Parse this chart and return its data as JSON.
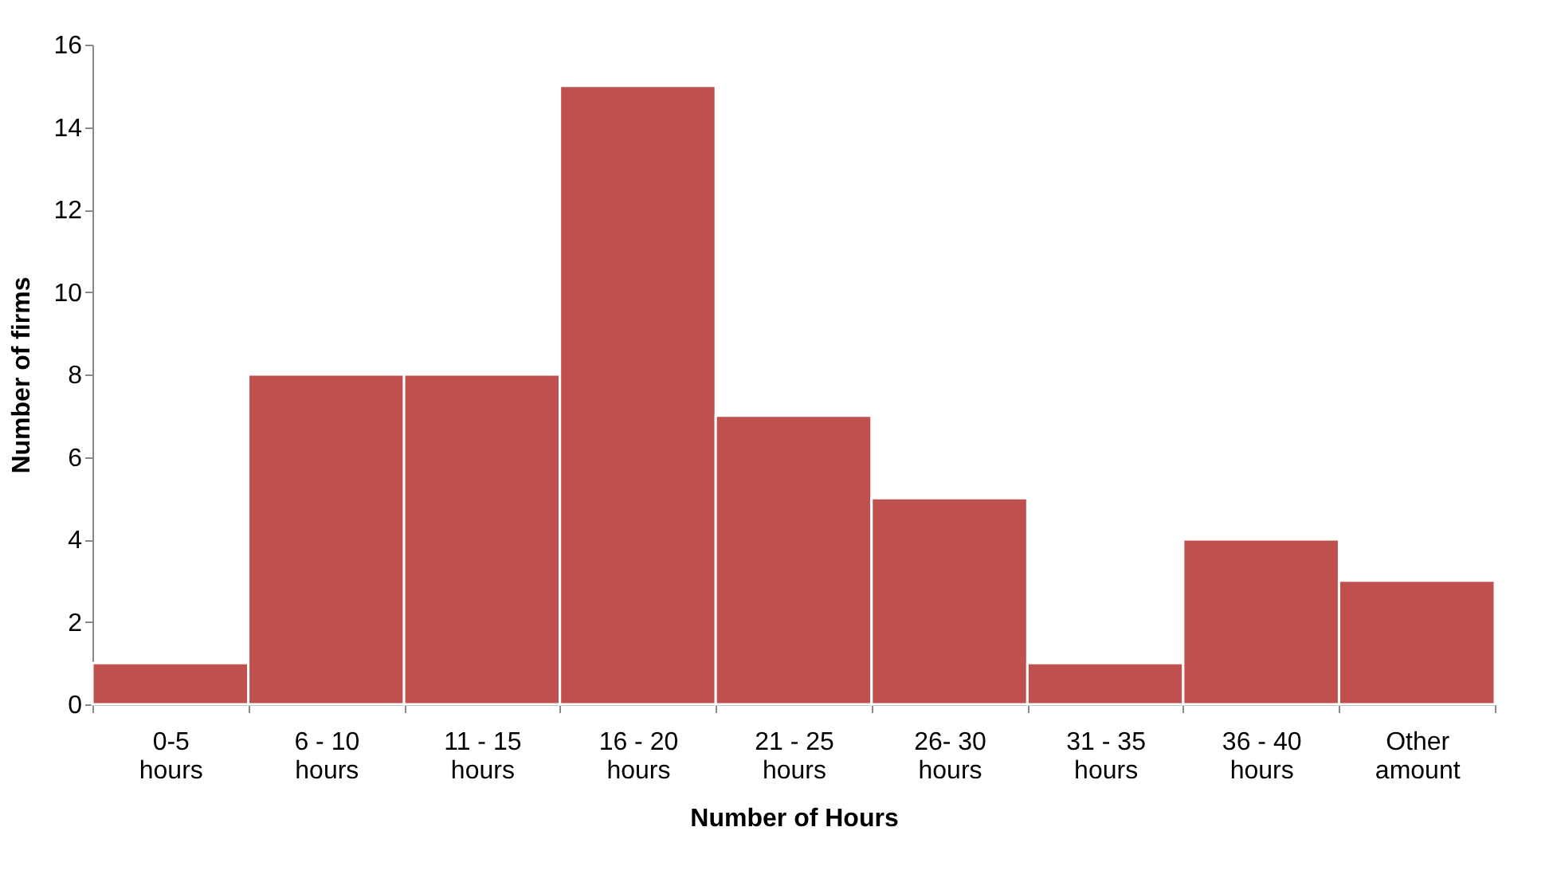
{
  "chart_data": {
    "type": "bar",
    "xlabel": "Number of Hours",
    "ylabel": "Number of firms",
    "categories": [
      "0-5 hours",
      "6 - 10 hours",
      "11 - 15 hours",
      "16 - 20 hours",
      "21 - 25 hours",
      "26- 30 hours",
      "31 - 35 hours",
      "36 - 40 hours",
      "Other amount"
    ],
    "values": [
      1,
      8,
      8,
      15,
      7,
      5,
      1,
      4,
      3
    ],
    "color": "#c0504d",
    "ylim": [
      0,
      16
    ],
    "yticks": [
      0,
      2,
      4,
      6,
      8,
      10,
      12,
      14,
      16
    ],
    "grid": false
  }
}
